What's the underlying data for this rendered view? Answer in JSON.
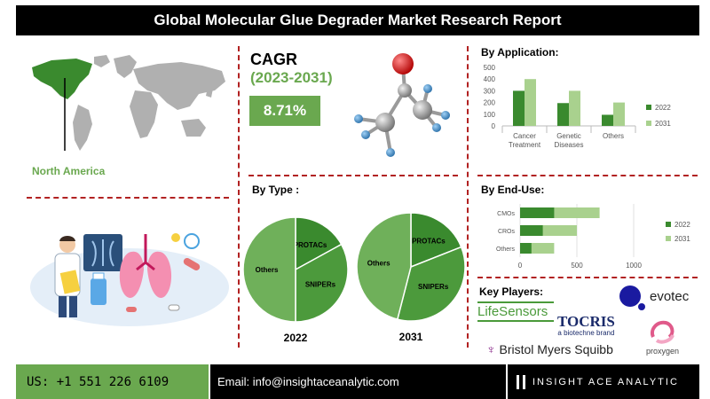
{
  "header": {
    "title": "Global Molecular Glue Degrader Market Research Report"
  },
  "region": {
    "label": "North America"
  },
  "cagr": {
    "title": "CAGR",
    "years": "(2023-2031)",
    "value": "8.71%"
  },
  "sections": {
    "by_application": "By Application:",
    "by_type": "By Type :",
    "by_end_use": "By End-Use:",
    "key_players": "Key Players:"
  },
  "key_players": {
    "lifesensors": "LifeSensors",
    "evotec": "evotec",
    "tocris": "TOCRIS",
    "tocris_sub": "a biotechne brand",
    "bms": "Bristol Myers Squibb",
    "proxygen": "proxygen"
  },
  "footer": {
    "phone": "US: +1 551 226 6109",
    "email": "Email: info@insightaceanalytic.com",
    "brand": "INSIGHT ACE ANALYTIC"
  },
  "colors": {
    "dark_green": "#3a8a2e",
    "light_green": "#a9d18e",
    "accent_green": "#6aa84f",
    "divider_red": "#b22222"
  },
  "chart_data": [
    {
      "type": "bar",
      "title": "By Application:",
      "categories": [
        [
          "Cancer",
          "Treatment"
        ],
        [
          "Genetic",
          "Diseases"
        ],
        [
          "Others"
        ]
      ],
      "series": [
        {
          "name": "2022",
          "values": [
            300,
            195,
            95
          ]
        },
        {
          "name": "2031",
          "values": [
            400,
            300,
            200
          ]
        }
      ],
      "ylim": [
        0,
        500
      ],
      "yticks": [
        0,
        100,
        200,
        300,
        400,
        500
      ],
      "legend": "right"
    },
    {
      "type": "pie",
      "title": "By Type :",
      "xlabel": "2022",
      "slices": [
        {
          "label": "PROTACs",
          "value": 17
        },
        {
          "label": "SNIPERs",
          "value": 33
        },
        {
          "label": "Others",
          "value": 50
        }
      ]
    },
    {
      "type": "pie",
      "title": "By Type :",
      "xlabel": "2031",
      "slices": [
        {
          "label": "PROTACs",
          "value": 19
        },
        {
          "label": "SNIPERs",
          "value": 35
        },
        {
          "label": "Others",
          "value": 46
        }
      ]
    },
    {
      "type": "bar",
      "orientation": "horizontal",
      "title": "By End-Use:",
      "categories": [
        "CMOs",
        "CROs",
        "Others"
      ],
      "series": [
        {
          "name": "2022",
          "values": [
            300,
            200,
            100
          ]
        },
        {
          "name": "2031",
          "values": [
            700,
            500,
            300
          ]
        }
      ],
      "xlim": [
        0,
        1000
      ],
      "xticks": [
        0,
        500,
        1000
      ],
      "legend": "right"
    }
  ]
}
